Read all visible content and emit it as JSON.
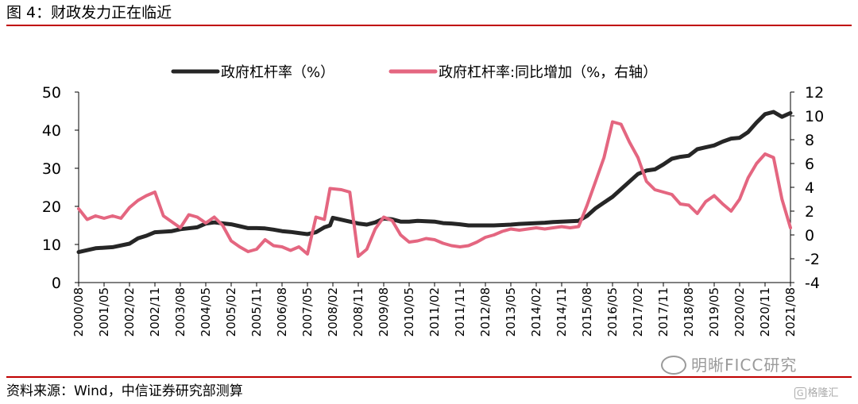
{
  "header": {
    "title": "图 4：财政发力正在临近"
  },
  "footer": {
    "source": "资料来源：Wind，中信证券研究部测算",
    "watermark": "明晰FICC研究",
    "badge": "格隆汇"
  },
  "colors": {
    "rule": "#c00000",
    "series_left": "#262626",
    "series_right": "#e46680"
  },
  "chart_data": {
    "type": "line",
    "legend_position": "top",
    "grid": false,
    "x_tick_labels": [
      "2000/08",
      "2001/05",
      "2002/02",
      "2002/11",
      "2003/08",
      "2004/05",
      "2005/02",
      "2005/11",
      "2006/08",
      "2007/05",
      "2008/02",
      "2008/11",
      "2009/08",
      "2010/05",
      "2011/02",
      "2011/11",
      "2012/08",
      "2013/05",
      "2014/02",
      "2014/11",
      "2015/08",
      "2016/05",
      "2017/02",
      "2017/11",
      "2018/08",
      "2019/05",
      "2020/02",
      "2020/11",
      "2021/08"
    ],
    "y_left": {
      "min": 0,
      "max": 50,
      "ticks": [
        0,
        10,
        20,
        30,
        40,
        50
      ]
    },
    "y_right": {
      "min": -4,
      "max": 12,
      "ticks": [
        -4,
        -2,
        0,
        2,
        4,
        6,
        8,
        10,
        12
      ]
    },
    "series": [
      {
        "name": "政府杠杆率（%）",
        "axis": "left",
        "points": [
          [
            "2000/08",
            8.0
          ],
          [
            "2001/02",
            9.0
          ],
          [
            "2001/08",
            9.3
          ],
          [
            "2002/02",
            10.2
          ],
          [
            "2002/05",
            11.6
          ],
          [
            "2002/08",
            12.3
          ],
          [
            "2002/11",
            13.2
          ],
          [
            "2003/05",
            13.5
          ],
          [
            "2003/08",
            14.0
          ],
          [
            "2004/02",
            14.5
          ],
          [
            "2004/05",
            15.5
          ],
          [
            "2004/08",
            15.8
          ],
          [
            "2005/02",
            15.3
          ],
          [
            "2005/05",
            14.8
          ],
          [
            "2005/08",
            14.3
          ],
          [
            "2005/11",
            14.3
          ],
          [
            "2006/02",
            14.2
          ],
          [
            "2006/05",
            13.9
          ],
          [
            "2006/08",
            13.5
          ],
          [
            "2006/11",
            13.3
          ],
          [
            "2007/02",
            13.0
          ],
          [
            "2007/05",
            12.7
          ],
          [
            "2007/08",
            13.2
          ],
          [
            "2007/11",
            14.5
          ],
          [
            "2008/01",
            15.0
          ],
          [
            "2008/02",
            17.0
          ],
          [
            "2008/05",
            16.5
          ],
          [
            "2008/08",
            16.0
          ],
          [
            "2008/11",
            15.5
          ],
          [
            "2009/02",
            15.2
          ],
          [
            "2009/05",
            15.8
          ],
          [
            "2009/08",
            16.8
          ],
          [
            "2009/11",
            16.6
          ],
          [
            "2010/02",
            16.0
          ],
          [
            "2010/05",
            16.0
          ],
          [
            "2010/08",
            16.2
          ],
          [
            "2010/11",
            16.1
          ],
          [
            "2011/02",
            16.0
          ],
          [
            "2011/05",
            15.6
          ],
          [
            "2011/08",
            15.5
          ],
          [
            "2011/11",
            15.3
          ],
          [
            "2012/02",
            15.0
          ],
          [
            "2012/05",
            15.0
          ],
          [
            "2012/08",
            15.0
          ],
          [
            "2012/11",
            15.0
          ],
          [
            "2013/02",
            15.1
          ],
          [
            "2013/05",
            15.2
          ],
          [
            "2013/08",
            15.4
          ],
          [
            "2013/11",
            15.5
          ],
          [
            "2014/02",
            15.6
          ],
          [
            "2014/05",
            15.7
          ],
          [
            "2014/08",
            15.9
          ],
          [
            "2014/11",
            16.0
          ],
          [
            "2015/02",
            16.1
          ],
          [
            "2015/05",
            16.2
          ],
          [
            "2015/08",
            17.5
          ],
          [
            "2015/11",
            19.5
          ],
          [
            "2016/02",
            21.0
          ],
          [
            "2016/05",
            22.5
          ],
          [
            "2016/08",
            24.5
          ],
          [
            "2016/11",
            26.5
          ],
          [
            "2017/02",
            28.5
          ],
          [
            "2017/05",
            29.4
          ],
          [
            "2017/08",
            29.7
          ],
          [
            "2017/11",
            31.0
          ],
          [
            "2018/02",
            32.5
          ],
          [
            "2018/05",
            33.0
          ],
          [
            "2018/08",
            33.3
          ],
          [
            "2018/11",
            35.0
          ],
          [
            "2019/02",
            35.5
          ],
          [
            "2019/05",
            36.0
          ],
          [
            "2019/08",
            37.0
          ],
          [
            "2019/11",
            37.8
          ],
          [
            "2020/02",
            38.0
          ],
          [
            "2020/05",
            39.5
          ],
          [
            "2020/08",
            42.0
          ],
          [
            "2020/11",
            44.2
          ],
          [
            "2021/02",
            44.8
          ],
          [
            "2021/05",
            43.5
          ],
          [
            "2021/08",
            44.5
          ]
        ]
      },
      {
        "name": "政府杠杆率:同比增加（%，右轴）",
        "axis": "right",
        "points": [
          [
            "2000/08",
            2.2
          ],
          [
            "2000/11",
            1.3
          ],
          [
            "2001/02",
            1.6
          ],
          [
            "2001/05",
            1.4
          ],
          [
            "2001/08",
            1.6
          ],
          [
            "2001/11",
            1.4
          ],
          [
            "2002/02",
            2.3
          ],
          [
            "2002/05",
            2.9
          ],
          [
            "2002/08",
            3.3
          ],
          [
            "2002/11",
            3.6
          ],
          [
            "2003/02",
            1.6
          ],
          [
            "2003/05",
            1.1
          ],
          [
            "2003/08",
            0.6
          ],
          [
            "2003/11",
            1.7
          ],
          [
            "2004/02",
            1.5
          ],
          [
            "2004/05",
            1.0
          ],
          [
            "2004/08",
            1.5
          ],
          [
            "2004/11",
            0.8
          ],
          [
            "2005/02",
            -0.5
          ],
          [
            "2005/05",
            -1.0
          ],
          [
            "2005/08",
            -1.4
          ],
          [
            "2005/11",
            -1.2
          ],
          [
            "2006/02",
            -0.4
          ],
          [
            "2006/05",
            -0.9
          ],
          [
            "2006/08",
            -1.0
          ],
          [
            "2006/11",
            -1.3
          ],
          [
            "2007/02",
            -1.0
          ],
          [
            "2007/05",
            -1.6
          ],
          [
            "2007/08",
            1.5
          ],
          [
            "2007/11",
            1.3
          ],
          [
            "2008/01",
            3.9
          ],
          [
            "2008/05",
            3.8
          ],
          [
            "2008/08",
            3.6
          ],
          [
            "2008/11",
            -1.8
          ],
          [
            "2009/02",
            -1.2
          ],
          [
            "2009/05",
            0.5
          ],
          [
            "2009/08",
            1.5
          ],
          [
            "2009/11",
            1.2
          ],
          [
            "2010/02",
            0.0
          ],
          [
            "2010/05",
            -0.6
          ],
          [
            "2010/08",
            -0.5
          ],
          [
            "2010/11",
            -0.3
          ],
          [
            "2011/02",
            -0.4
          ],
          [
            "2011/05",
            -0.7
          ],
          [
            "2011/08",
            -0.9
          ],
          [
            "2011/11",
            -1.0
          ],
          [
            "2012/02",
            -0.9
          ],
          [
            "2012/05",
            -0.6
          ],
          [
            "2012/08",
            -0.2
          ],
          [
            "2012/11",
            0.0
          ],
          [
            "2013/02",
            0.3
          ],
          [
            "2013/05",
            0.5
          ],
          [
            "2013/08",
            0.4
          ],
          [
            "2013/11",
            0.5
          ],
          [
            "2014/02",
            0.6
          ],
          [
            "2014/05",
            0.5
          ],
          [
            "2014/08",
            0.6
          ],
          [
            "2014/11",
            0.7
          ],
          [
            "2015/02",
            0.6
          ],
          [
            "2015/05",
            0.7
          ],
          [
            "2015/08",
            2.5
          ],
          [
            "2015/11",
            4.5
          ],
          [
            "2016/02",
            6.5
          ],
          [
            "2016/05",
            9.5
          ],
          [
            "2016/08",
            9.3
          ],
          [
            "2016/11",
            7.8
          ],
          [
            "2017/02",
            6.5
          ],
          [
            "2017/05",
            4.5
          ],
          [
            "2017/08",
            3.8
          ],
          [
            "2017/11",
            3.6
          ],
          [
            "2018/02",
            3.4
          ],
          [
            "2018/05",
            2.6
          ],
          [
            "2018/08",
            2.5
          ],
          [
            "2018/11",
            1.8
          ],
          [
            "2019/02",
            2.8
          ],
          [
            "2019/05",
            3.3
          ],
          [
            "2019/08",
            2.6
          ],
          [
            "2019/11",
            2.0
          ],
          [
            "2020/02",
            3.0
          ],
          [
            "2020/05",
            4.8
          ],
          [
            "2020/08",
            6.0
          ],
          [
            "2020/11",
            6.8
          ],
          [
            "2021/02",
            6.5
          ],
          [
            "2021/05",
            3.0
          ],
          [
            "2021/08",
            0.6
          ]
        ]
      }
    ]
  }
}
